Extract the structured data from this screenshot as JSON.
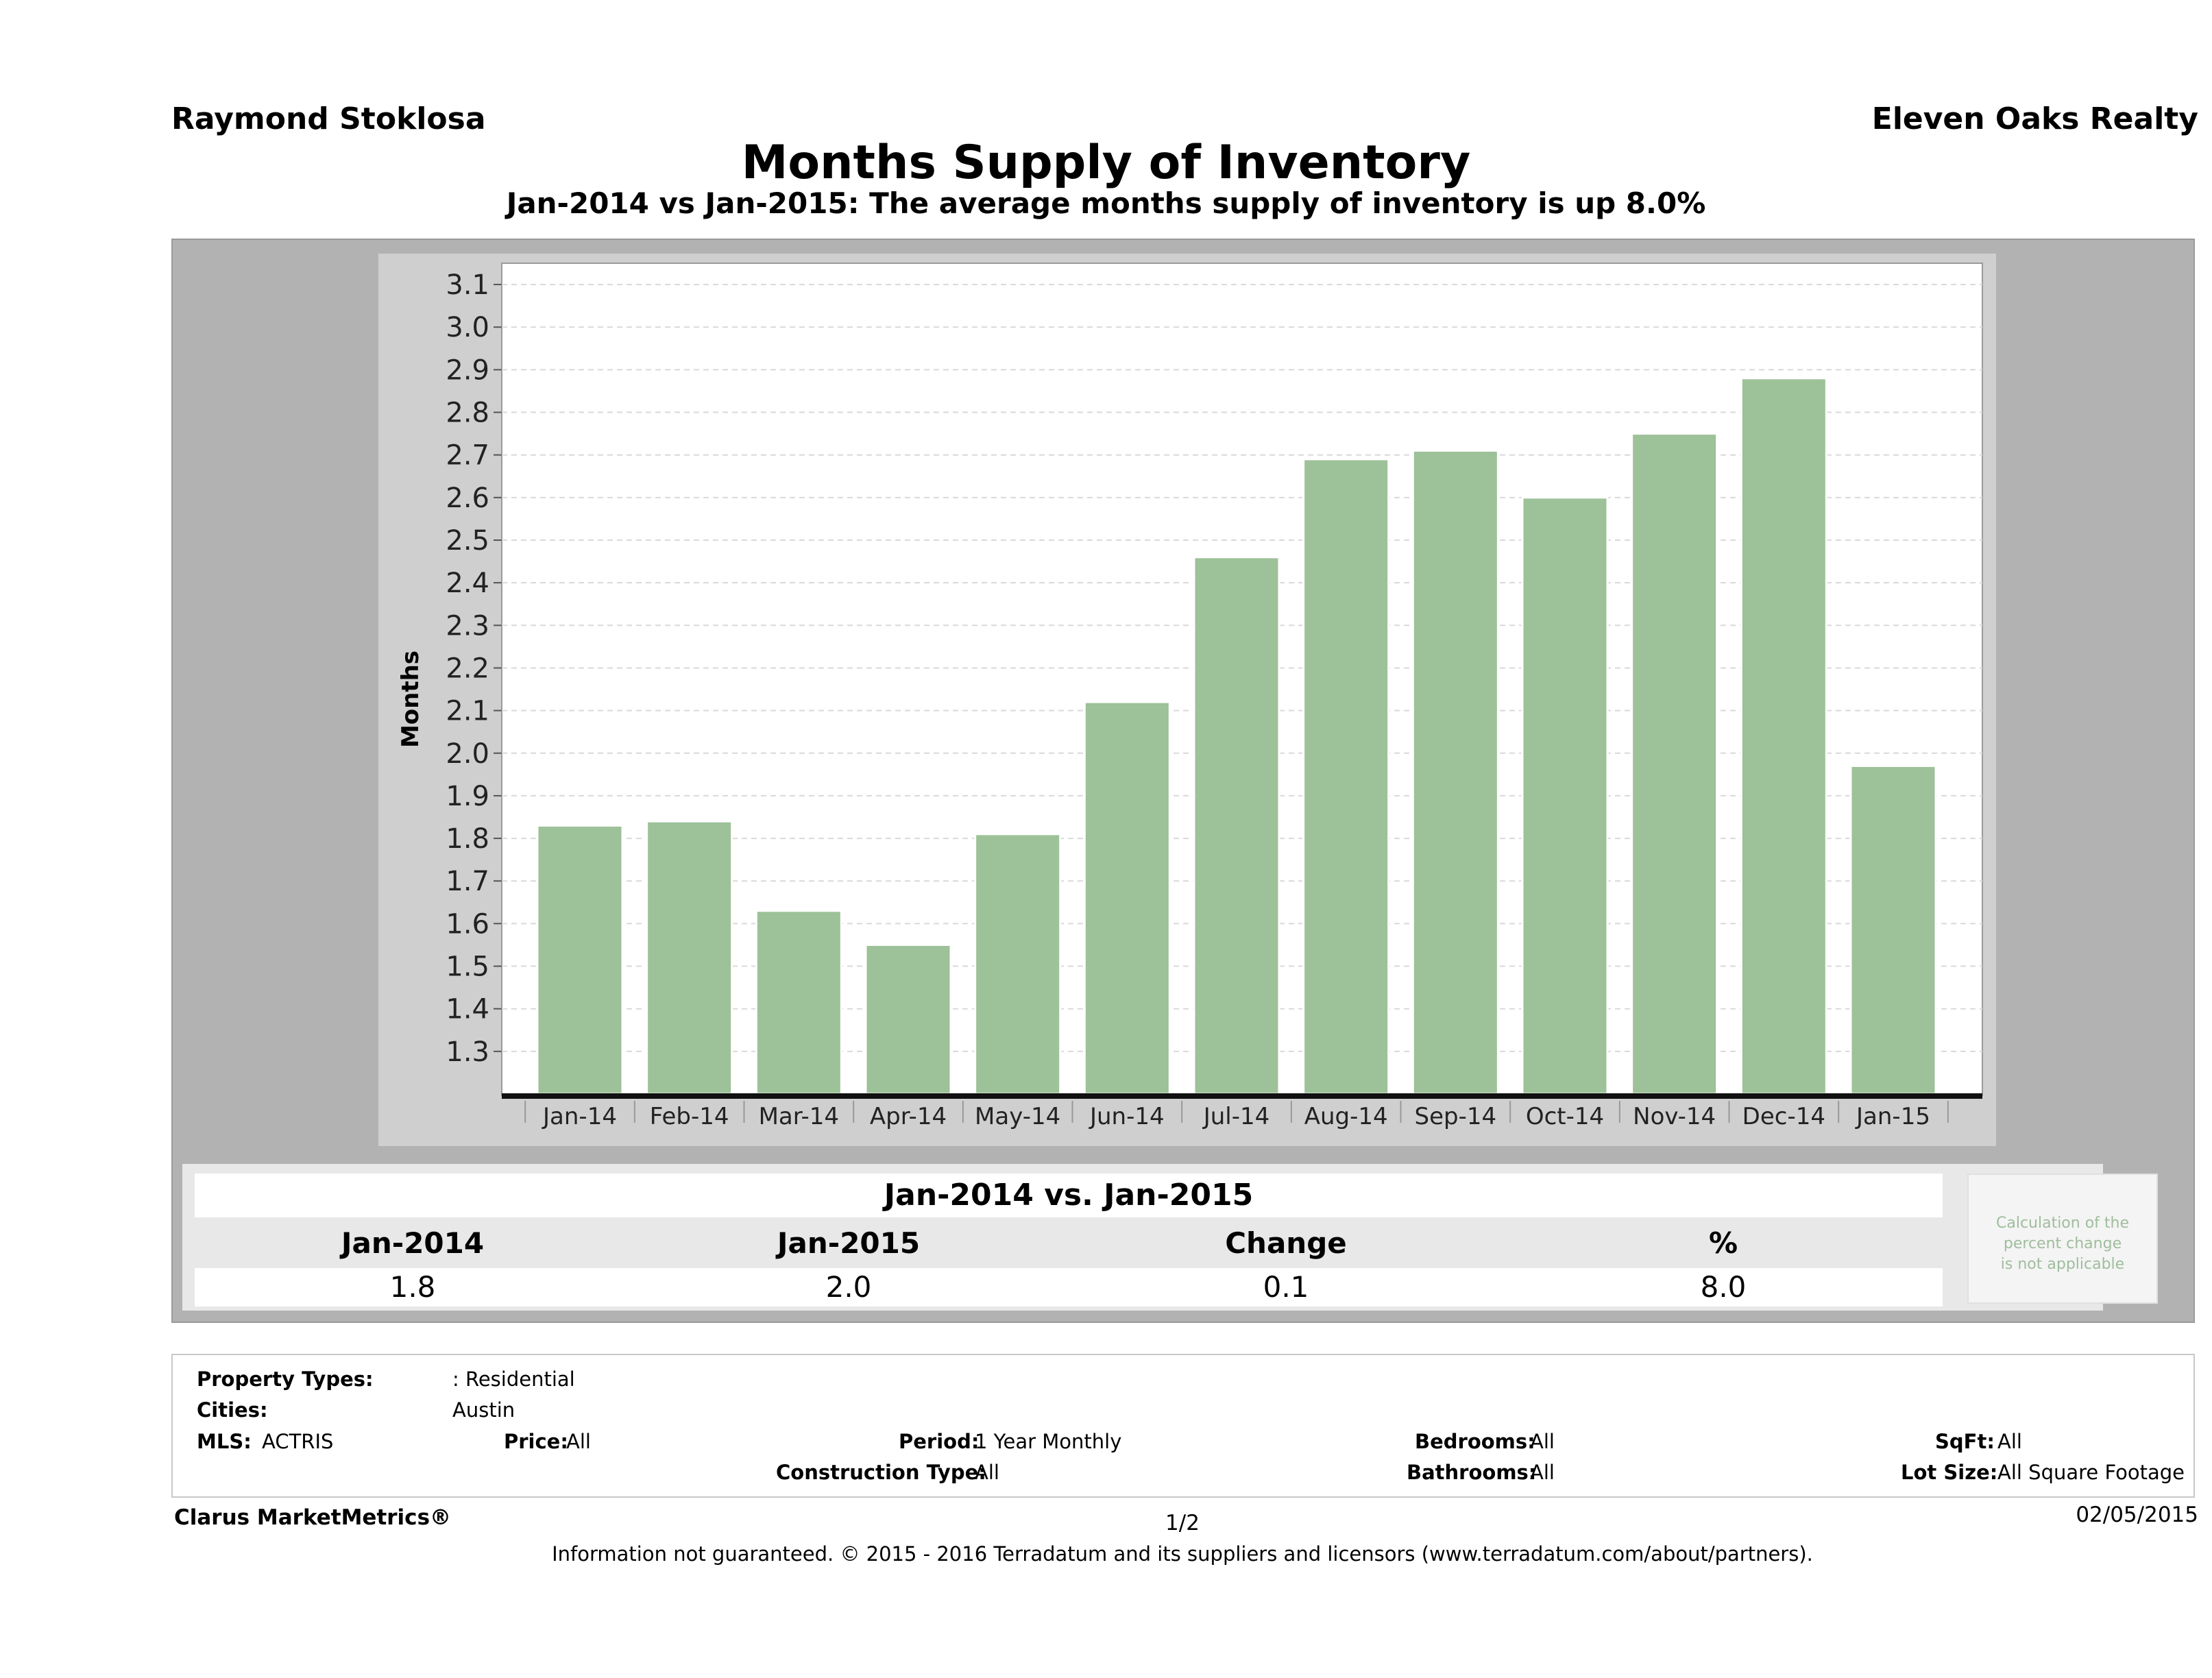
{
  "header": {
    "agent": "Raymond Stoklosa",
    "company": "Eleven Oaks Realty",
    "title": "Months Supply of Inventory",
    "subtitle": "Jan-2014 vs Jan-2015: The average months supply of inventory is up 8.0%"
  },
  "chart_data": {
    "type": "bar",
    "title": "Months Supply of Inventory",
    "subtitle": "Jan-2014 vs Jan-2015: The average months supply of inventory is up 8.0%",
    "xlabel": "",
    "ylabel": "Months",
    "categories": [
      "Jan-14",
      "Feb-14",
      "Mar-14",
      "Apr-14",
      "May-14",
      "Jun-14",
      "Jul-14",
      "Aug-14",
      "Sep-14",
      "Oct-14",
      "Nov-14",
      "Dec-14",
      "Jan-15"
    ],
    "values": [
      1.83,
      1.84,
      1.63,
      1.55,
      1.81,
      2.12,
      2.46,
      2.69,
      2.71,
      2.6,
      2.75,
      2.88,
      1.97
    ],
    "ylim": [
      1.2,
      3.15
    ],
    "yticks": [
      "1.3",
      "1.4",
      "1.5",
      "1.6",
      "1.7",
      "1.8",
      "1.9",
      "2.0",
      "2.1",
      "2.2",
      "2.3",
      "2.4",
      "2.5",
      "2.6",
      "2.7",
      "2.8",
      "2.9",
      "3.0",
      "3.1"
    ],
    "grid": true,
    "bar_color": "#9dc198"
  },
  "summary": {
    "title": "Jan-2014 vs. Jan-2015",
    "col1_head": "Jan-2014",
    "col2_head": "Jan-2015",
    "col3_head": "Change",
    "col4_head": "%",
    "col1_val": "1.8",
    "col2_val": "2.0",
    "col3_val": "0.1",
    "col4_val": "8.0",
    "note_line1": "Calculation of the",
    "note_line2": "percent change",
    "note_line3": "is not applicable"
  },
  "filters": {
    "property_types_label": "Property Types:",
    "property_types_value": ": Residential",
    "cities_label": "Cities:",
    "cities_value": "Austin",
    "mls_label": "MLS:",
    "mls_value": "ACTRIS",
    "price_label": "Price:",
    "price_value": "All",
    "period_label": "Period:",
    "period_value": "1 Year Monthly",
    "bedrooms_label": "Bedrooms:",
    "bedrooms_value": "All",
    "sqft_label": "SqFt:",
    "sqft_value": "All",
    "construction_label": "Construction Type:",
    "construction_value": "All",
    "bathrooms_label": "Bathrooms:",
    "bathrooms_value": "All",
    "lotsize_label": "Lot Size:",
    "lotsize_value": "All Square Footage"
  },
  "footer": {
    "brand": "Clarus MarketMetrics®",
    "page": "1/2",
    "date": "02/05/2015",
    "disclaimer": "Information not guaranteed. © 2015 - 2016 Terradatum and its suppliers and licensors (www.terradatum.com/about/partners)."
  }
}
